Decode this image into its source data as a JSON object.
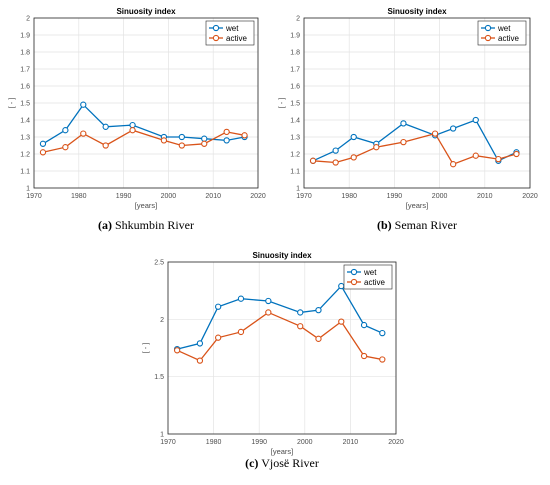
{
  "chart_data": [
    {
      "type": "line",
      "title": "Sinuosity index",
      "xlabel": "[years]",
      "ylabel": "[ - ]",
      "caption": {
        "label": "(a)",
        "text": " Shkumbin River"
      },
      "xlim": [
        1970,
        2020
      ],
      "ylim": [
        1,
        2
      ],
      "xticks": [
        "1970",
        "1980",
        "1990",
        "2000",
        "2010",
        "2020"
      ],
      "yticks": [
        "1",
        "1.1",
        "1.2",
        "1.3",
        "1.4",
        "1.5",
        "1.6",
        "1.7",
        "1.8",
        "1.9",
        "2"
      ],
      "grid": true,
      "legend": "top-right",
      "x": [
        1972,
        1977,
        1981,
        1986,
        1992,
        1999,
        2003,
        2008,
        2013,
        2017
      ],
      "series": [
        {
          "name": "wet",
          "color": "#0072BD",
          "values": [
            1.26,
            1.34,
            1.49,
            1.36,
            1.37,
            1.3,
            1.3,
            1.29,
            1.28,
            1.3
          ]
        },
        {
          "name": "active",
          "color": "#D95319",
          "values": [
            1.21,
            1.24,
            1.32,
            1.25,
            1.34,
            1.28,
            1.25,
            1.26,
            1.33,
            1.31
          ]
        }
      ]
    },
    {
      "type": "line",
      "title": "Sinuosity index",
      "xlabel": "[years]",
      "ylabel": "[ - ]",
      "caption": {
        "label": "(b)",
        "text": " Seman River"
      },
      "xlim": [
        1970,
        2020
      ],
      "ylim": [
        1,
        2
      ],
      "xticks": [
        "1970",
        "1980",
        "1990",
        "2000",
        "2010",
        "2020"
      ],
      "yticks": [
        "1",
        "1.1",
        "1.2",
        "1.3",
        "1.4",
        "1.5",
        "1.6",
        "1.7",
        "1.8",
        "1.9",
        "2"
      ],
      "grid": true,
      "legend": "top-right",
      "x": [
        1972,
        1977,
        1981,
        1986,
        1992,
        1999,
        2003,
        2008,
        2013,
        2017
      ],
      "series": [
        {
          "name": "wet",
          "color": "#0072BD",
          "values": [
            1.16,
            1.22,
            1.3,
            1.26,
            1.38,
            1.31,
            1.35,
            1.4,
            1.16,
            1.21
          ]
        },
        {
          "name": "active",
          "color": "#D95319",
          "values": [
            1.16,
            1.15,
            1.18,
            1.24,
            1.27,
            1.32,
            1.14,
            1.19,
            1.17,
            1.2
          ]
        }
      ]
    },
    {
      "type": "line",
      "title": "Sinuosity index",
      "xlabel": "[years]",
      "ylabel": "[ - ]",
      "caption": {
        "label": "(c)",
        "text": " Vjosë River"
      },
      "xlim": [
        1970,
        2020
      ],
      "ylim": [
        1,
        2.5
      ],
      "xticks": [
        "1970",
        "1980",
        "1990",
        "2000",
        "2010",
        "2020"
      ],
      "yticks": [
        "1",
        "1.5",
        "2",
        "2.5"
      ],
      "grid": true,
      "legend": "top-right",
      "x": [
        1972,
        1977,
        1981,
        1986,
        1992,
        1999,
        2003,
        2008,
        2013,
        2017
      ],
      "series": [
        {
          "name": "wet",
          "color": "#0072BD",
          "values": [
            1.74,
            1.79,
            2.11,
            2.18,
            2.16,
            2.06,
            2.08,
            2.29,
            1.95,
            1.88
          ]
        },
        {
          "name": "active",
          "color": "#D95319",
          "values": [
            1.73,
            1.64,
            1.84,
            1.89,
            2.06,
            1.94,
            1.83,
            1.98,
            1.68,
            1.65
          ]
        }
      ]
    }
  ]
}
